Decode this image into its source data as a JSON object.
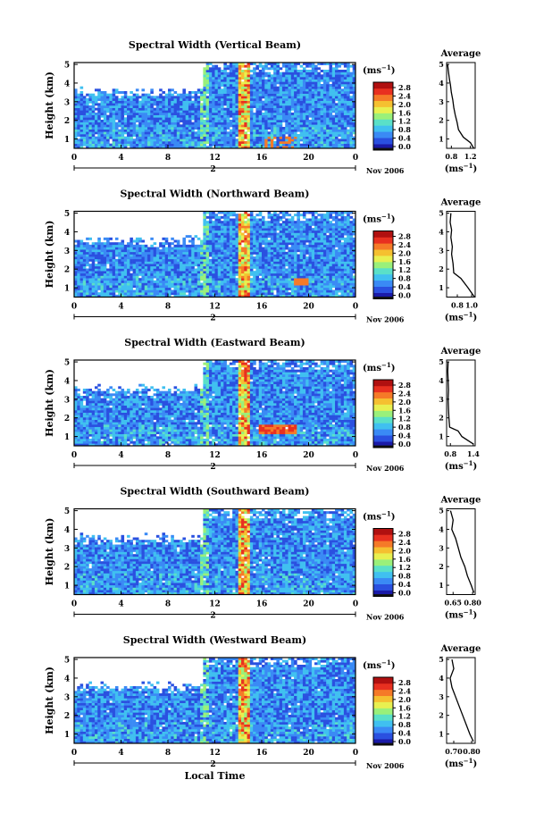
{
  "figure": {
    "ylabel": "Height (km)",
    "xlabel": "Local Time",
    "date_label": "Nov 2006",
    "marker_label": "2",
    "unit": "(ms",
    "unit_exp": "−1",
    "unit_close": ")",
    "avg_title": "Average",
    "colormap": [
      "#1a1aa8",
      "#2a50e0",
      "#3a8af5",
      "#40c0f0",
      "#5ae0c8",
      "#9af07a",
      "#e8f050",
      "#f5c030",
      "#f57a28",
      "#e83020",
      "#b01010"
    ]
  },
  "chart_data": [
    {
      "type": "heatmap",
      "title": "Spectral Width (Vertical Beam)",
      "x_ticks": [
        "0",
        "4",
        "8",
        "12",
        "16",
        "20",
        "0"
      ],
      "y_ticks": [
        "1",
        "2",
        "3",
        "4",
        "5"
      ],
      "ylim": [
        0.5,
        5.1
      ],
      "xlim": [
        0,
        24
      ],
      "colorbar_ticks": [
        "0.0",
        "0.4",
        "0.8",
        "1.2",
        "1.6",
        "2.0",
        "2.4",
        "2.8"
      ],
      "average": {
        "x_ticks": [
          "0.8",
          "1.2"
        ],
        "xlim": [
          0.7,
          1.3
        ],
        "profile": [
          [
            1.27,
            0.5
          ],
          [
            1.2,
            0.8
          ],
          [
            1.05,
            1.1
          ],
          [
            0.95,
            1.5
          ],
          [
            0.92,
            1.9
          ],
          [
            0.88,
            2.3
          ],
          [
            0.85,
            2.7
          ],
          [
            0.83,
            3.1
          ],
          [
            0.8,
            3.5
          ],
          [
            0.78,
            3.9
          ],
          [
            0.76,
            4.2
          ],
          [
            0.74,
            4.6
          ],
          [
            0.72,
            5.0
          ]
        ]
      }
    },
    {
      "type": "heatmap",
      "title": "Spectral Width (Northward Beam)",
      "x_ticks": [
        "0",
        "4",
        "8",
        "12",
        "16",
        "20",
        "0"
      ],
      "y_ticks": [
        "1",
        "2",
        "3",
        "4",
        "5"
      ],
      "ylim": [
        0.5,
        5.1
      ],
      "xlim": [
        0,
        24
      ],
      "colorbar_ticks": [
        "0.0",
        "0.4",
        "0.8",
        "1.2",
        "1.6",
        "2.0",
        "2.4",
        "2.8"
      ],
      "average": {
        "x_ticks": [
          "0.8",
          "1.0"
        ],
        "xlim": [
          0.65,
          1.05
        ],
        "profile": [
          [
            1.04,
            0.5
          ],
          [
            0.95,
            1.0
          ],
          [
            0.85,
            1.5
          ],
          [
            0.75,
            1.8
          ],
          [
            0.74,
            2.3
          ],
          [
            0.72,
            2.8
          ],
          [
            0.73,
            3.2
          ],
          [
            0.71,
            3.7
          ],
          [
            0.72,
            4.1
          ],
          [
            0.7,
            4.5
          ],
          [
            0.71,
            5.0
          ]
        ]
      }
    },
    {
      "type": "heatmap",
      "title": "Spectral Width (Eastward Beam)",
      "x_ticks": [
        "0",
        "4",
        "8",
        "12",
        "16",
        "20",
        "0"
      ],
      "y_ticks": [
        "1",
        "2",
        "3",
        "4",
        "5"
      ],
      "ylim": [
        0.5,
        5.1
      ],
      "xlim": [
        0,
        24
      ],
      "colorbar_ticks": [
        "0.0",
        "0.4",
        "0.8",
        "1.2",
        "1.6",
        "2.0",
        "2.4",
        "2.8"
      ],
      "average": {
        "x_ticks": [
          "0.8",
          "1.4"
        ],
        "xlim": [
          0.7,
          1.45
        ],
        "profile": [
          [
            1.4,
            0.6
          ],
          [
            1.1,
            1.0
          ],
          [
            1.0,
            1.3
          ],
          [
            0.78,
            1.5
          ],
          [
            0.76,
            2.0
          ],
          [
            0.75,
            2.5
          ],
          [
            0.74,
            3.0
          ],
          [
            0.75,
            3.5
          ],
          [
            0.74,
            4.0
          ],
          [
            0.73,
            4.5
          ],
          [
            0.74,
            5.0
          ]
        ]
      }
    },
    {
      "type": "heatmap",
      "title": "Spectral Width (Southward Beam)",
      "x_ticks": [
        "0",
        "4",
        "8",
        "12",
        "16",
        "20",
        "0"
      ],
      "y_ticks": [
        "1",
        "2",
        "3",
        "4",
        "5"
      ],
      "ylim": [
        0.5,
        5.1
      ],
      "xlim": [
        0,
        24
      ],
      "colorbar_ticks": [
        "0.0",
        "0.4",
        "0.8",
        "1.2",
        "1.6",
        "2.0",
        "2.4",
        "2.8"
      ],
      "average": {
        "x_ticks": [
          "0.65",
          "0.80"
        ],
        "xlim": [
          0.6,
          0.82
        ],
        "profile": [
          [
            0.81,
            0.6
          ],
          [
            0.79,
            1.0
          ],
          [
            0.76,
            1.5
          ],
          [
            0.74,
            2.0
          ],
          [
            0.71,
            2.5
          ],
          [
            0.69,
            3.0
          ],
          [
            0.67,
            3.5
          ],
          [
            0.64,
            4.0
          ],
          [
            0.65,
            4.5
          ],
          [
            0.63,
            5.0
          ]
        ]
      }
    },
    {
      "type": "heatmap",
      "title": "Spectral Width (Westward Beam)",
      "x_ticks": [
        "0",
        "4",
        "8",
        "12",
        "16",
        "20",
        "0"
      ],
      "y_ticks": [
        "1",
        "2",
        "3",
        "4",
        "5"
      ],
      "ylim": [
        0.5,
        5.1
      ],
      "xlim": [
        0,
        24
      ],
      "colorbar_ticks": [
        "0.0",
        "0.4",
        "0.8",
        "1.2",
        "1.6",
        "2.0",
        "2.4",
        "2.8"
      ],
      "average": {
        "x_ticks": [
          "0.70",
          "0.80"
        ],
        "xlim": [
          0.66,
          0.82
        ],
        "profile": [
          [
            0.81,
            0.6
          ],
          [
            0.79,
            1.0
          ],
          [
            0.77,
            1.5
          ],
          [
            0.75,
            2.0
          ],
          [
            0.73,
            2.5
          ],
          [
            0.71,
            3.0
          ],
          [
            0.69,
            3.5
          ],
          [
            0.68,
            4.0
          ],
          [
            0.7,
            4.5
          ],
          [
            0.69,
            5.0
          ]
        ]
      }
    }
  ]
}
